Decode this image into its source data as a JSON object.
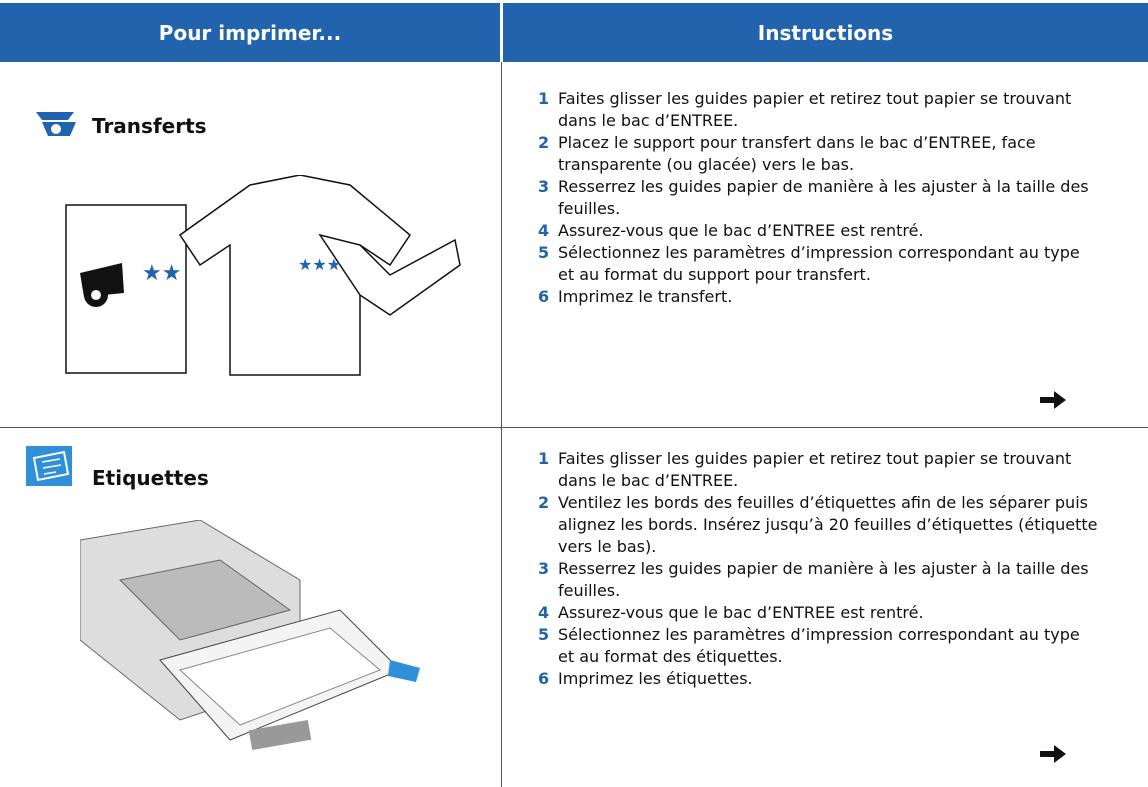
{
  "header": {
    "columns": [
      "Pour imprimer...",
      "Instructions"
    ]
  },
  "rows": [
    {
      "title": "Transferts",
      "steps": [
        {
          "number": "1",
          "text": "Faites glisser les guides papier et retirez tout papier se trouvant dans le bac d’ENTREE."
        },
        {
          "number": "2",
          "text": "Placez le support pour transfert dans le bac d’ENTREE, face transparente (ou glacée) vers le bas."
        },
        {
          "number": "3",
          "text": "Resserrez les guides papier de manière à les ajuster à la taille des feuilles."
        },
        {
          "number": "4",
          "text": "Assurez-vous que le bac d’ENTREE est rentré."
        },
        {
          "number": "5",
          "text": "Sélectionnez les paramètres d’impression correspondant au type et au format du support pour transfert."
        },
        {
          "number": "6",
          "text": "Imprimez le transfert."
        }
      ]
    },
    {
      "title": "Etiquettes",
      "steps": [
        {
          "number": "1",
          "text": "Faites glisser les guides papier et retirez tout papier se trouvant dans le bac d’ENTREE."
        },
        {
          "number": "2",
          "text": "Ventilez les bords des feuilles d’étiquettes afin de les séparer puis alignez les bords. Insérez jusqu’à 20 feuilles d’étiquettes (étiquette vers le bas)."
        },
        {
          "number": "3",
          "text": "Resserrez les guides papier de manière à les ajuster à la taille des feuilles."
        },
        {
          "number": "4",
          "text": "Assurez-vous que le bac d’ENTREE est rentré."
        },
        {
          "number": "5",
          "text": "Sélectionnez les paramètres d’impression correspondant au type et au format des étiquettes."
        },
        {
          "number": "6",
          "text": "Imprimez les étiquettes."
        }
      ]
    }
  ]
}
